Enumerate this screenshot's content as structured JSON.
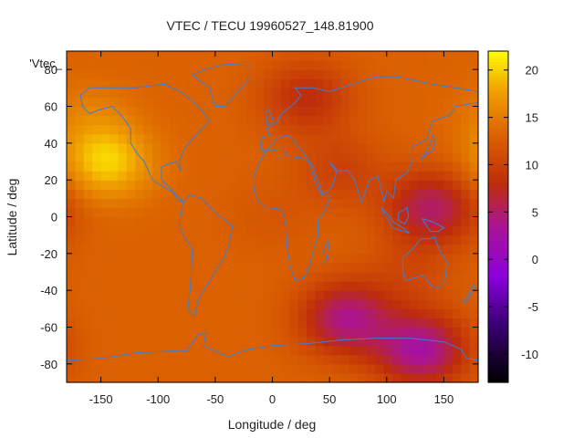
{
  "chart_data": {
    "type": "heatmap",
    "title": "VTEC / TECU 19960527_148.81900",
    "xlabel": "Longitude / deg",
    "ylabel": "Latitude / deg",
    "legend_label": "'Vtec_",
    "xlim": [
      -180,
      180
    ],
    "ylim": [
      -90,
      90
    ],
    "x_ticks": [
      -150,
      -100,
      -50,
      0,
      50,
      100,
      150
    ],
    "y_ticks": [
      -80,
      -60,
      -40,
      -20,
      0,
      20,
      40,
      60,
      80
    ],
    "colorbar": {
      "min": -13,
      "max": 22,
      "ticks": [
        -10,
        -5,
        0,
        5,
        10,
        15,
        20
      ],
      "palette": "black-purple-red-orange-yellow"
    },
    "field_features": [
      {
        "lon": -145,
        "lat": 30,
        "value": 20
      },
      {
        "lon": -160,
        "lat": 55,
        "value": 15
      },
      {
        "lon": 30,
        "lat": 65,
        "value": 8
      },
      {
        "lon": 60,
        "lat": 25,
        "value": 10
      },
      {
        "lon": 140,
        "lat": 5,
        "value": 5
      },
      {
        "lon": 65,
        "lat": -55,
        "value": 4
      },
      {
        "lon": 130,
        "lat": -72,
        "value": 3
      },
      {
        "lon": -100,
        "lat": -40,
        "value": 13
      },
      {
        "lon": 0,
        "lat": 0,
        "value": 12
      },
      {
        "lon": 120,
        "lat": -30,
        "value": 11
      }
    ],
    "background_value": 13,
    "grid": false,
    "overlay": "coastlines"
  }
}
